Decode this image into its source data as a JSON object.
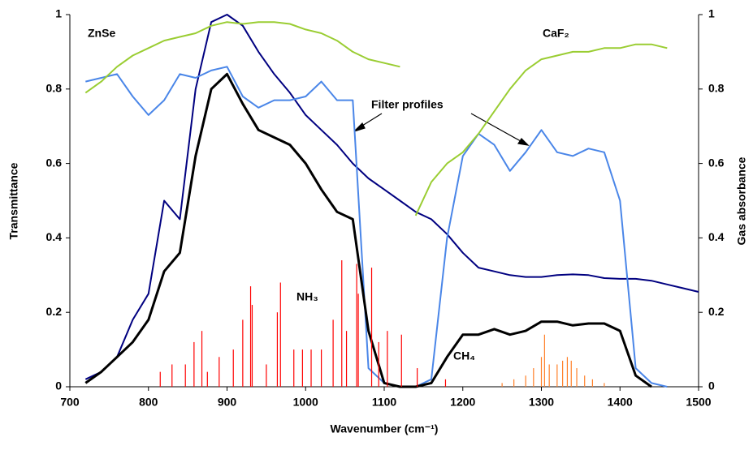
{
  "chart_data": {
    "type": "line",
    "x_label": "Wavenumber (cm⁻¹)",
    "y_label": "Transmittance",
    "y2_label": "Gas absorbance",
    "annotations": [
      "ZnSe",
      "CaF₂",
      "Filter profiles",
      "NH₃",
      "CH₄"
    ],
    "xlim": [
      700,
      1500
    ],
    "xticks": [
      700,
      800,
      900,
      1000,
      1100,
      1200,
      1300,
      1400,
      1500
    ],
    "ylim": [
      0,
      1
    ],
    "yticks": [
      0,
      0.2,
      0.4,
      0.6,
      0.8,
      1
    ],
    "y2lim": [
      0,
      1
    ],
    "y2ticks": [
      0,
      0.2,
      0.4,
      0.6,
      0.8,
      1
    ],
    "grid": false,
    "x": [
      700,
      720,
      740,
      760,
      780,
      800,
      820,
      840,
      860,
      880,
      900,
      920,
      940,
      960,
      980,
      1000,
      1020,
      1040,
      1060,
      1080,
      1100,
      1120,
      1140,
      1160,
      1180,
      1200,
      1220,
      1240,
      1260,
      1280,
      1300,
      1320,
      1340,
      1360,
      1380,
      1400,
      1420,
      1440,
      1460,
      1480,
      1500
    ],
    "series": [
      {
        "color": "#000080",
        "values": [
          null,
          0.02,
          0.04,
          0.08,
          0.18,
          0.25,
          0.5,
          0.45,
          0.8,
          0.98,
          1.0,
          0.97,
          0.9,
          0.84,
          0.79,
          0.73,
          0.69,
          0.65,
          0.6,
          0.56,
          0.53,
          0.5,
          0.47,
          0.45,
          0.41,
          0.36,
          0.32,
          0.31,
          0.3,
          0.295,
          0.295,
          0.3,
          0.302,
          0.3,
          0.292,
          0.29,
          0.29,
          0.285,
          0.275,
          0.265,
          0.255
        ]
      },
      {
        "color": "#4a86e8",
        "values": [
          null,
          0.82,
          0.83,
          0.84,
          0.78,
          0.73,
          0.77,
          0.84,
          0.83,
          0.85,
          0.86,
          0.78,
          0.75,
          0.77,
          0.77,
          0.78,
          0.82,
          0.77,
          0.77,
          0.05,
          0.01,
          0.0,
          0.0,
          0.02,
          0.4,
          0.62,
          0.68,
          0.65,
          0.58,
          0.63,
          0.69,
          0.63,
          0.62,
          0.64,
          0.63,
          0.5,
          0.05,
          0.01,
          0.0,
          null,
          null
        ]
      },
      {
        "color": "#9acd32",
        "values": [
          null,
          0.79,
          0.82,
          0.86,
          0.89,
          0.91,
          0.93,
          0.94,
          0.95,
          0.97,
          0.98,
          0.975,
          0.98,
          0.98,
          0.975,
          0.96,
          0.95,
          0.93,
          0.9,
          0.88,
          0.87,
          0.86,
          null,
          null,
          null,
          null,
          null,
          null,
          null,
          null,
          null,
          null,
          null,
          null,
          null,
          null,
          null,
          null,
          null,
          null,
          null
        ]
      },
      {
        "color": "#9acd32",
        "values": [
          null,
          null,
          null,
          null,
          null,
          null,
          null,
          null,
          null,
          null,
          null,
          null,
          null,
          null,
          null,
          null,
          null,
          null,
          null,
          null,
          null,
          null,
          0.46,
          0.55,
          0.6,
          0.63,
          0.68,
          0.74,
          0.8,
          0.85,
          0.88,
          0.89,
          0.9,
          0.9,
          0.91,
          0.91,
          0.92,
          0.92,
          0.91,
          null,
          null
        ]
      },
      {
        "color": "#000000",
        "width": 3,
        "values": [
          null,
          0.01,
          0.04,
          0.08,
          0.12,
          0.18,
          0.31,
          0.36,
          0.62,
          0.8,
          0.84,
          0.76,
          0.69,
          0.67,
          0.65,
          0.6,
          0.53,
          0.47,
          0.45,
          0.15,
          0.01,
          0.0,
          0.0,
          0.01,
          0.08,
          0.14,
          0.14,
          0.155,
          0.14,
          0.15,
          0.175,
          0.175,
          0.165,
          0.17,
          0.17,
          0.15,
          0.03,
          0.0,
          null,
          null,
          null
        ]
      },
      {
        "color": "#ff0000",
        "axis": "y2",
        "style": "stick",
        "x": [
          815,
          830,
          847,
          858,
          868,
          875,
          890,
          908,
          920,
          930,
          932,
          950,
          964,
          968,
          985,
          996,
          1007,
          1020,
          1035,
          1046,
          1052,
          1065,
          1067,
          1084,
          1093,
          1104,
          1122,
          1142,
          1178
        ],
        "values": [
          0.04,
          0.06,
          0.06,
          0.12,
          0.15,
          0.04,
          0.08,
          0.1,
          0.18,
          0.27,
          0.22,
          0.06,
          0.2,
          0.28,
          0.1,
          0.1,
          0.1,
          0.1,
          0.18,
          0.34,
          0.15,
          0.33,
          0.25,
          0.32,
          0.12,
          0.15,
          0.14,
          0.05,
          0.02
        ]
      },
      {
        "color": "#ff7f27",
        "axis": "y2",
        "style": "stick",
        "x": [
          1250,
          1265,
          1280,
          1290,
          1300,
          1304,
          1310,
          1320,
          1327,
          1333,
          1338,
          1345,
          1355,
          1365,
          1380
        ],
        "values": [
          0.01,
          0.02,
          0.03,
          0.05,
          0.08,
          0.14,
          0.06,
          0.06,
          0.07,
          0.08,
          0.07,
          0.05,
          0.03,
          0.02,
          0.01
        ]
      }
    ]
  }
}
